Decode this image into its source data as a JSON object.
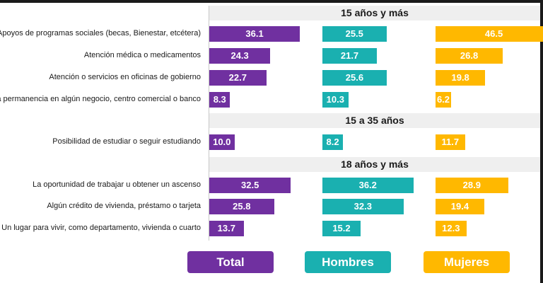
{
  "chart_data": {
    "type": "bar",
    "orientation": "horizontal",
    "sections": [
      {
        "title": "15 años y más",
        "categories": [
          "Apoyos de programas sociales (becas, Bienestar, etcétera)",
          "Atención médica o medicamentos",
          "Atención o servicios en oficinas de gobierno",
          "La permanencia en algún negocio, centro comercial o banco"
        ]
      },
      {
        "title": "15 a 35 años",
        "categories": [
          "Posibilidad de estudiar o seguir estudiando"
        ]
      },
      {
        "title": "18 años y más",
        "categories": [
          "La oportunidad de trabajar u obtener un ascenso",
          "Algún crédito de vivienda, préstamo o tarjeta",
          "Un lugar para vivir, como departamento, vivienda o cuarto"
        ]
      }
    ],
    "series": [
      {
        "name": "Total",
        "color": "#7030a0",
        "values": [
          36.1,
          24.3,
          22.7,
          8.3,
          10.0,
          32.5,
          25.8,
          13.7
        ]
      },
      {
        "name": "Hombres",
        "color": "#1ab0b0",
        "values": [
          25.5,
          21.7,
          25.6,
          10.3,
          8.2,
          36.2,
          32.3,
          15.2
        ]
      },
      {
        "name": "Mujeres",
        "color": "#ffb800",
        "values": [
          46.5,
          26.8,
          19.8,
          6.2,
          11.7,
          28.9,
          19.4,
          12.3
        ]
      }
    ],
    "value_labels": {
      "Total": [
        "36.1",
        "24.3",
        "22.7",
        "8.3",
        "10.0",
        "32.5",
        "25.8",
        "13.7"
      ],
      "Hombres": [
        "25.5",
        "21.7",
        "25.6",
        "10.3",
        "8.2",
        "36.2",
        "32.3",
        "15.2"
      ],
      "Mujeres": [
        "46.5",
        "26.8",
        "19.8",
        "6.2",
        "11.7",
        "28.9",
        "19.4",
        "12.3"
      ]
    },
    "legend": [
      "Total",
      "Hombres",
      "Mujeres"
    ],
    "legend_position": "bottom",
    "grid": false
  }
}
